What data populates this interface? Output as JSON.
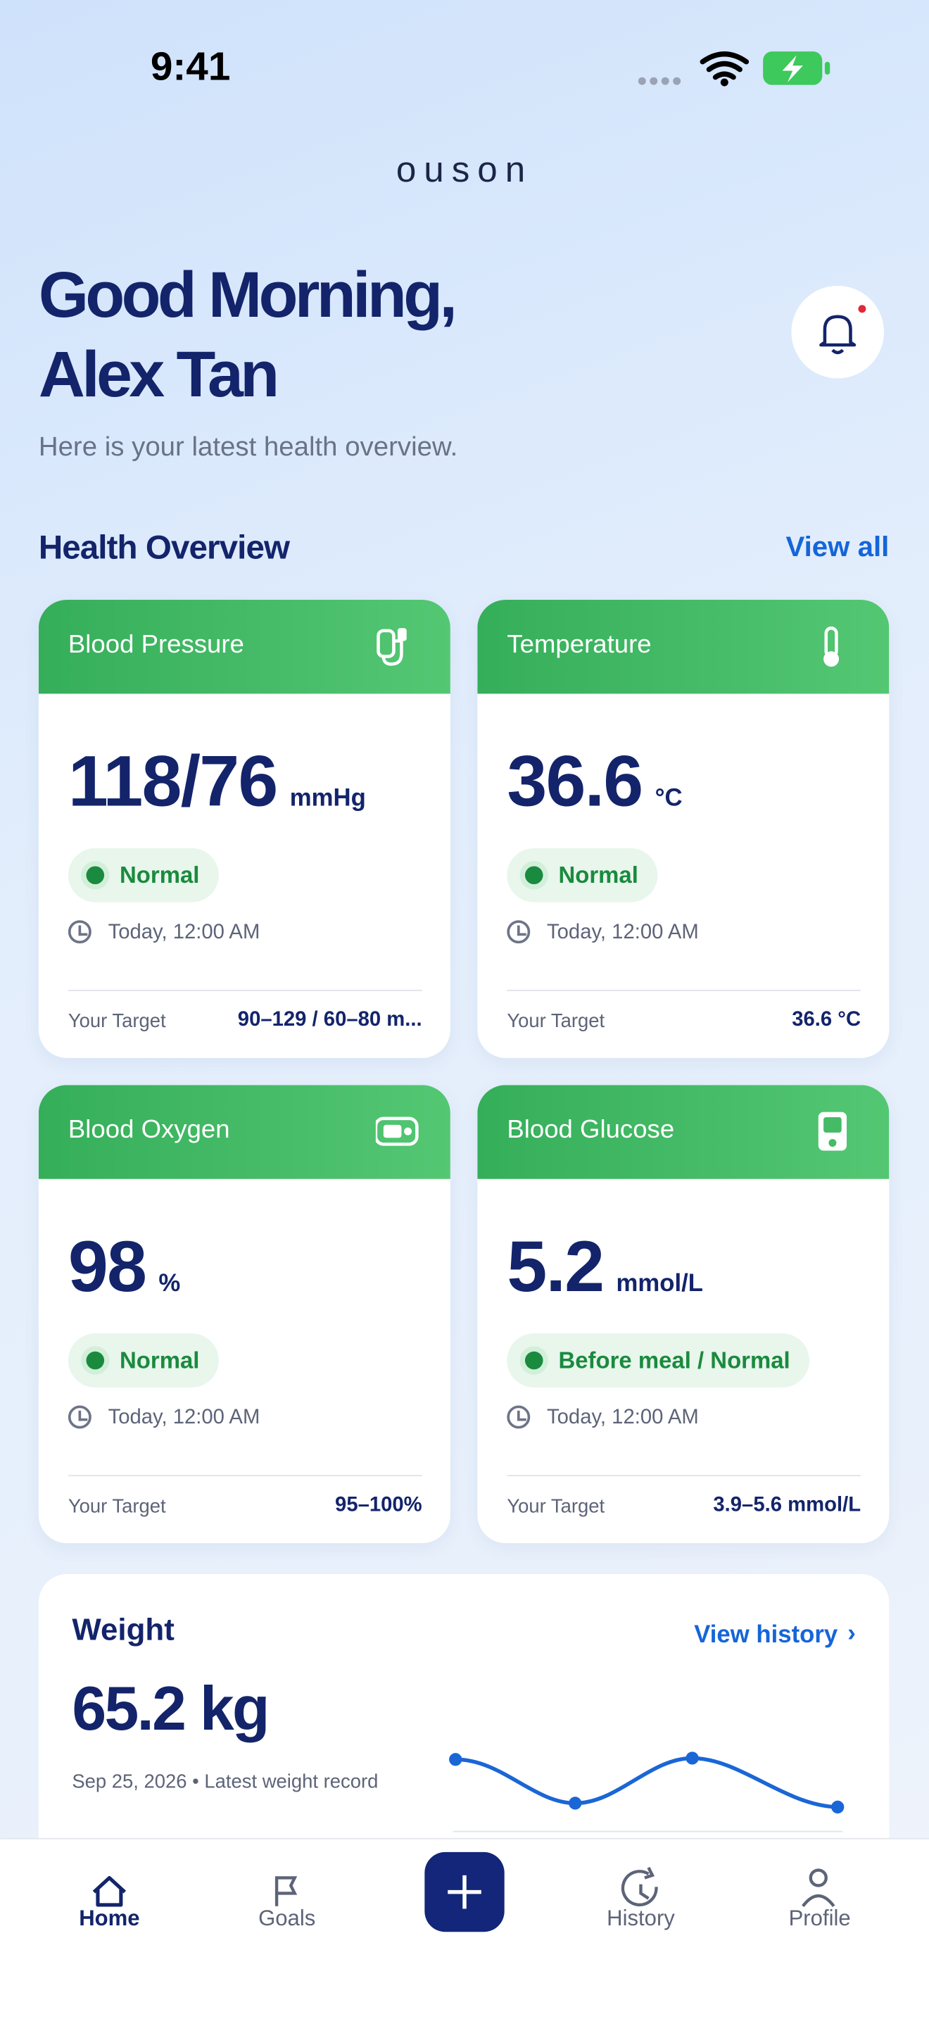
{
  "status_bar": {
    "time": "9:41"
  },
  "header": {
    "logo": "ouson",
    "greeting": "Good Morning,",
    "name": "Alex Tan",
    "subtitle": "Here is your latest health overview."
  },
  "overview": {
    "title": "Health Overview",
    "action": "View all",
    "cards": [
      {
        "title": "Blood Pressure",
        "value": "118/76",
        "unit": "mmHg",
        "status": "Normal",
        "time": "Today, 12:00 AM",
        "target_label": "Your Target",
        "target": "90–129 / 60–80 m..."
      },
      {
        "title": "Temperature",
        "value": "36.6",
        "unit": "°C",
        "status": "Normal",
        "time": "Today, 12:00 AM",
        "target_label": "Your Target",
        "target": "36.6 °C"
      },
      {
        "title": "Blood Oxygen",
        "value": "98",
        "unit": "%",
        "status": "Normal",
        "time": "Today, 12:00 AM",
        "target_label": "Your Target",
        "target": "95–100%"
      },
      {
        "title": "Blood Glucose",
        "value": "5.2",
        "unit": "mmol/L",
        "status": "Before meal / Normal",
        "time": "Today, 12:00 AM",
        "target_label": "Your Target",
        "target": "3.9–5.6 mmol/L"
      }
    ]
  },
  "weight": {
    "title": "Weight",
    "action": "View history",
    "value": "65.2 kg",
    "note": "Sep 25, 2026 • Latest weight record"
  },
  "nav": {
    "items": [
      "Home",
      "Goals",
      "History",
      "Profile"
    ]
  }
}
